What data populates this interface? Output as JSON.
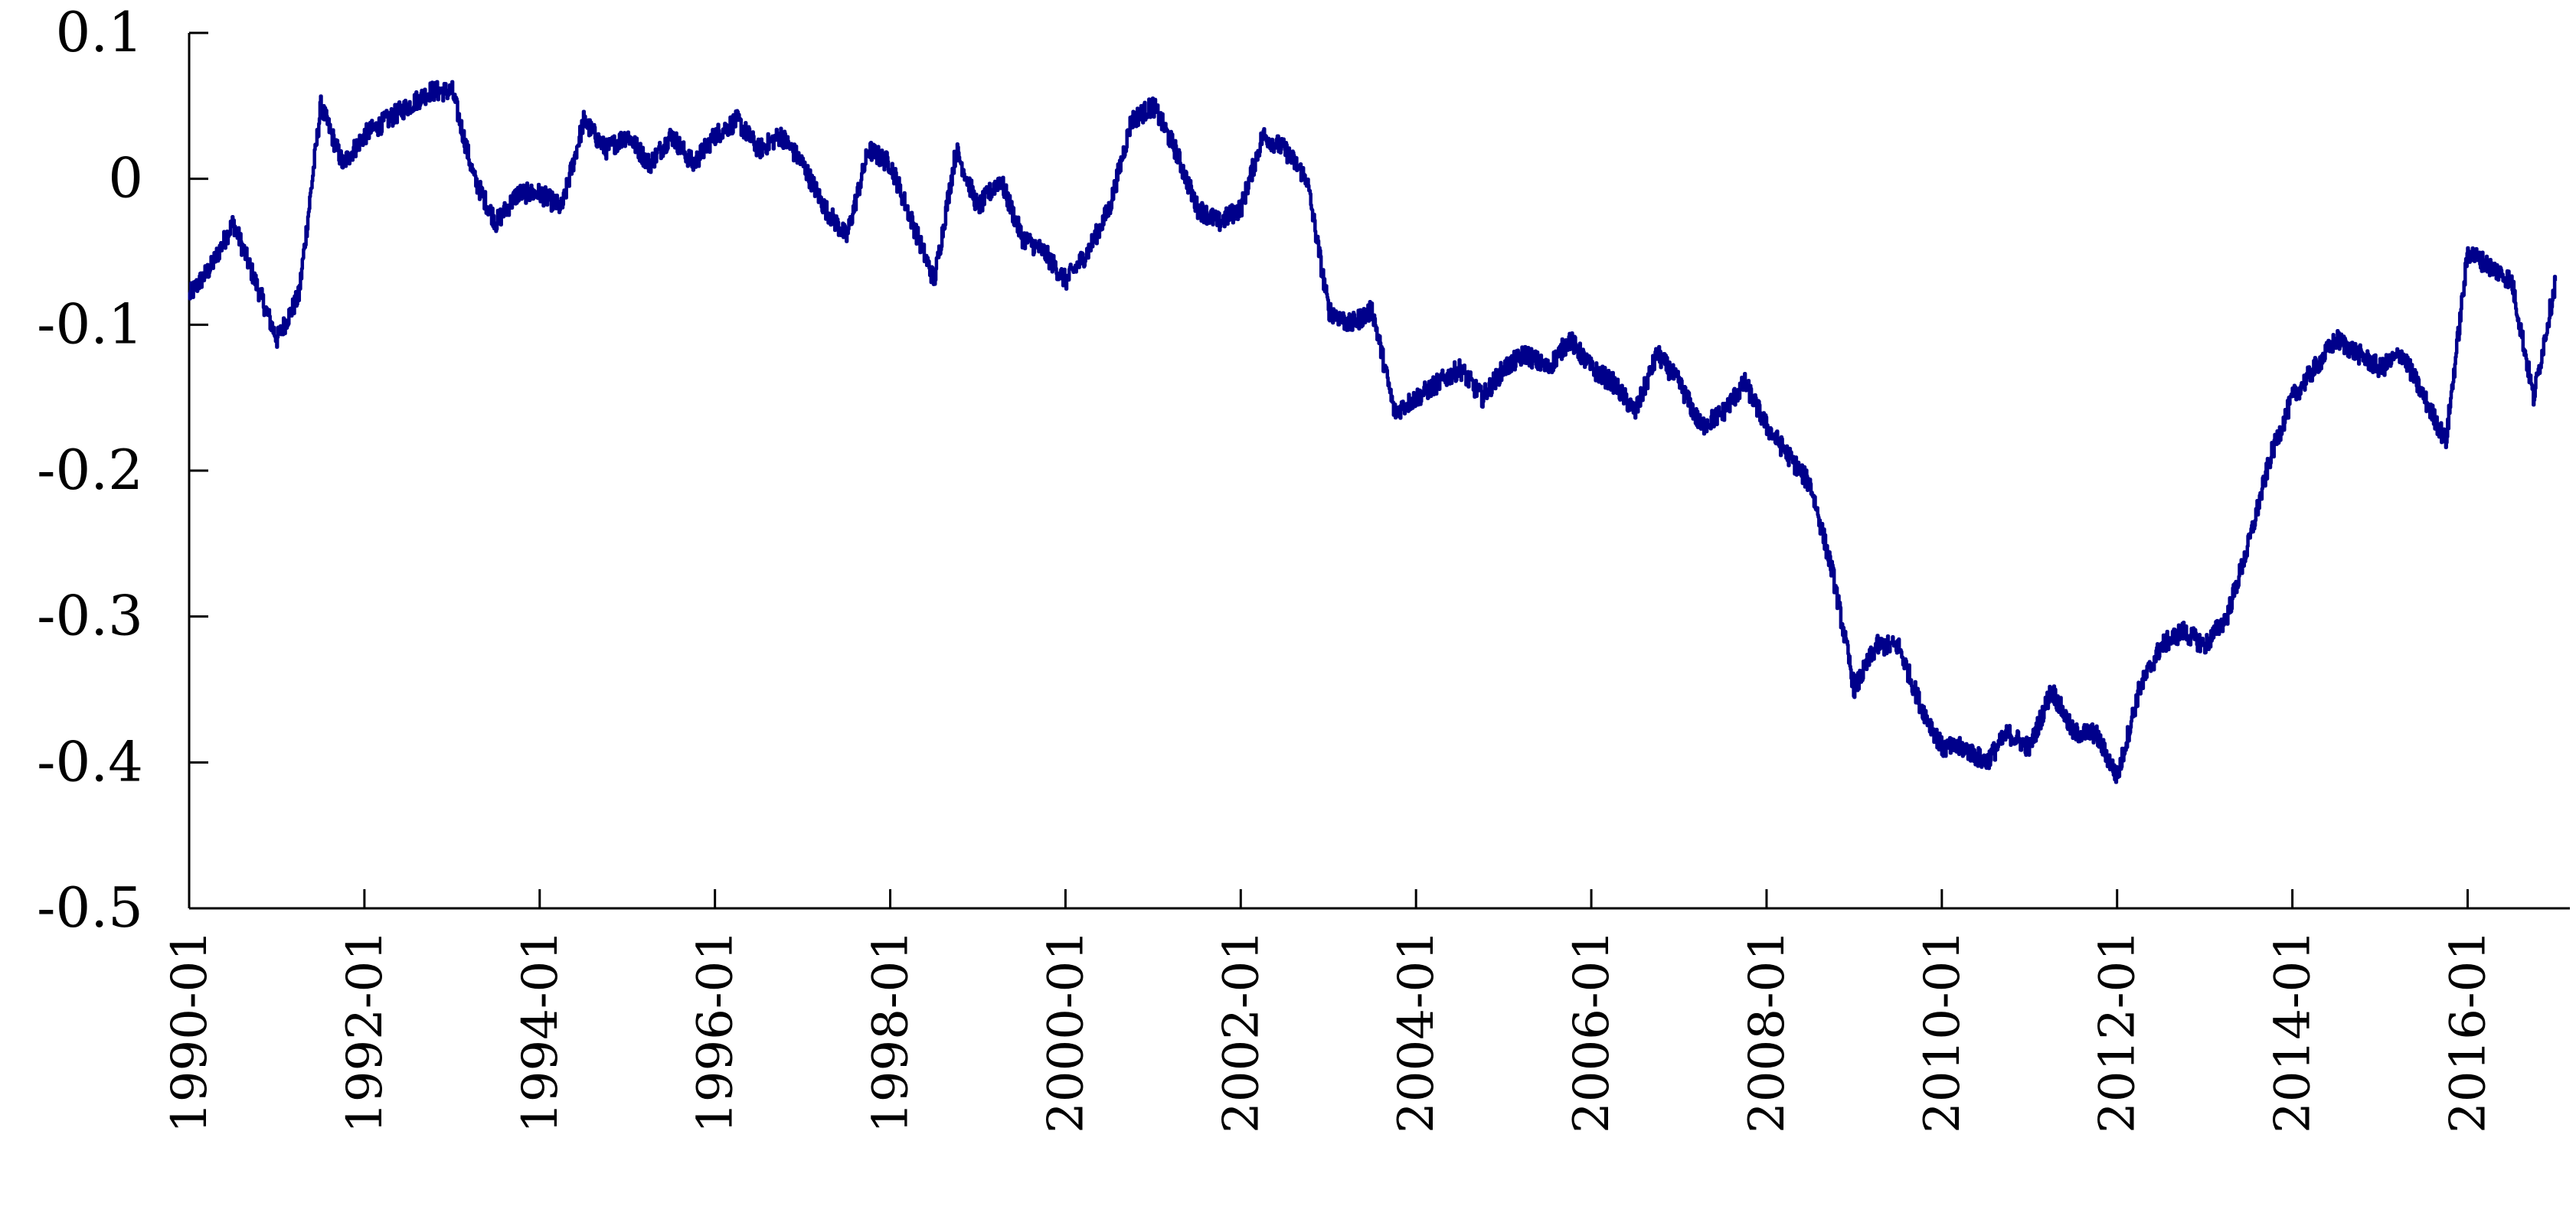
{
  "chart_data": {
    "type": "line",
    "title": "",
    "xlabel": "",
    "ylabel": "",
    "ylim": [
      -0.5,
      0.1
    ],
    "xlim": [
      "1990-01",
      "2017-03"
    ],
    "grid": false,
    "legend": "none",
    "y_ticks": [
      0.1,
      0,
      -0.1,
      -0.2,
      -0.3,
      -0.4,
      -0.5
    ],
    "y_tick_labels": [
      "0.1",
      "0",
      "-0.1",
      "-0.2",
      "-0.3",
      "-0.4",
      "-0.5"
    ],
    "x_tick_labels": [
      "1990-01",
      "1992-01",
      "1994-01",
      "1996-01",
      "1998-01",
      "2000-01",
      "2002-01",
      "2004-01",
      "2006-01",
      "2008-01",
      "2010-01",
      "2012-01",
      "2014-01",
      "2016-01"
    ],
    "series": [
      {
        "color": "#00008B",
        "x": [
          "1990-01",
          "1990-04",
          "1990-07",
          "1990-10",
          "1991-01",
          "1991-04",
          "1991-07",
          "1991-10",
          "1992-01",
          "1992-04",
          "1992-07",
          "1992-10",
          "1993-01",
          "1993-04",
          "1993-07",
          "1993-10",
          "1994-01",
          "1994-04",
          "1994-07",
          "1994-10",
          "1995-01",
          "1995-04",
          "1995-07",
          "1995-10",
          "1996-01",
          "1996-04",
          "1996-07",
          "1996-10",
          "1997-01",
          "1997-04",
          "1997-07",
          "1997-10",
          "1998-01",
          "1998-04",
          "1998-07",
          "1998-10",
          "1999-01",
          "1999-04",
          "1999-07",
          "1999-10",
          "2000-01",
          "2000-04",
          "2000-07",
          "2000-10",
          "2001-01",
          "2001-04",
          "2001-07",
          "2001-10",
          "2002-01",
          "2002-04",
          "2002-07",
          "2002-10",
          "2003-01",
          "2003-04",
          "2003-07",
          "2003-10",
          "2004-01",
          "2004-04",
          "2004-07",
          "2004-10",
          "2005-01",
          "2005-04",
          "2005-07",
          "2005-10",
          "2006-01",
          "2006-04",
          "2006-07",
          "2006-10",
          "2007-01",
          "2007-04",
          "2007-07",
          "2007-10",
          "2008-01",
          "2008-04",
          "2008-07",
          "2008-10",
          "2009-01",
          "2009-04",
          "2009-07",
          "2009-10",
          "2010-01",
          "2010-04",
          "2010-07",
          "2010-10",
          "2011-01",
          "2011-04",
          "2011-07",
          "2011-10",
          "2012-01",
          "2012-04",
          "2012-07",
          "2012-10",
          "2013-01",
          "2013-04",
          "2013-07",
          "2013-10",
          "2014-01",
          "2014-04",
          "2014-07",
          "2014-10",
          "2015-01",
          "2015-04",
          "2015-07",
          "2015-10",
          "2016-01",
          "2016-04",
          "2016-07",
          "2016-10",
          "2017-01"
        ],
        "values": [
          -0.08,
          -0.06,
          -0.03,
          -0.07,
          -0.11,
          -0.08,
          0.05,
          0.01,
          0.03,
          0.04,
          0.05,
          0.06,
          0.06,
          0.0,
          -0.03,
          -0.01,
          -0.01,
          -0.02,
          0.04,
          0.02,
          0.03,
          0.01,
          0.03,
          0.01,
          0.03,
          0.04,
          0.02,
          0.03,
          0.01,
          -0.02,
          -0.04,
          0.02,
          0.01,
          -0.03,
          -0.07,
          0.02,
          -0.02,
          0.0,
          -0.04,
          -0.05,
          -0.07,
          -0.05,
          -0.02,
          0.04,
          0.05,
          0.02,
          -0.02,
          -0.03,
          -0.02,
          0.03,
          0.02,
          0.0,
          -0.09,
          -0.1,
          -0.09,
          -0.16,
          -0.15,
          -0.14,
          -0.13,
          -0.15,
          -0.13,
          -0.12,
          -0.13,
          -0.11,
          -0.13,
          -0.14,
          -0.16,
          -0.12,
          -0.14,
          -0.17,
          -0.16,
          -0.14,
          -0.17,
          -0.19,
          -0.21,
          -0.27,
          -0.35,
          -0.32,
          -0.32,
          -0.36,
          -0.39,
          -0.39,
          -0.4,
          -0.38,
          -0.39,
          -0.35,
          -0.38,
          -0.38,
          -0.41,
          -0.35,
          -0.32,
          -0.31,
          -0.32,
          -0.3,
          -0.25,
          -0.19,
          -0.15,
          -0.13,
          -0.11,
          -0.12,
          -0.13,
          -0.12,
          -0.15,
          -0.18,
          -0.05,
          -0.06,
          -0.07,
          -0.15,
          -0.07
        ]
      }
    ]
  }
}
